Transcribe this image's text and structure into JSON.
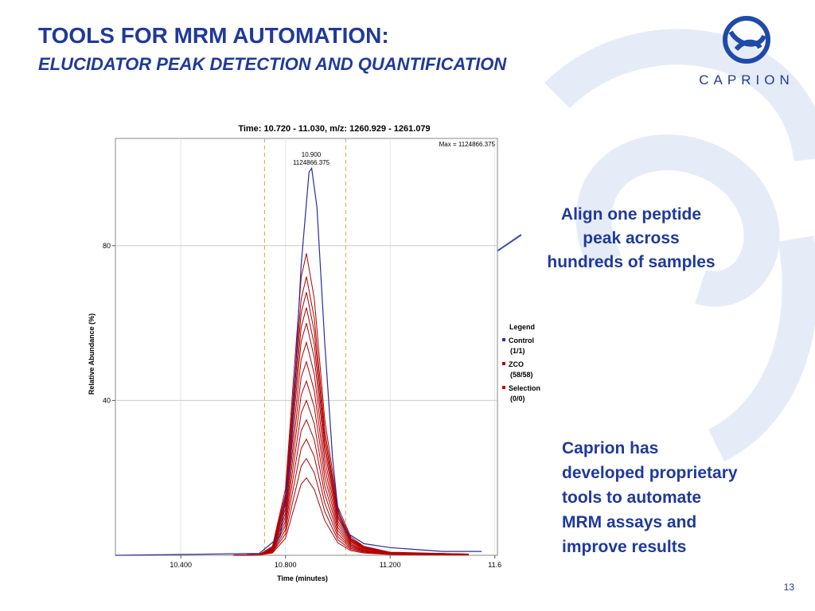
{
  "header": {
    "title": "TOOLS FOR MRM AUTOMATION:",
    "subtitle": "ELUCIDATOR PEAK DETECTION AND QUANTIFICATION",
    "logo": "CAPRION"
  },
  "callouts": [
    "Align one peptide",
    "peak across",
    "hundreds of samples"
  ],
  "body": [
    "Caprion has",
    "developed proprietary",
    "tools to automate",
    "MRM assays and",
    "improve results"
  ],
  "page_number": "13",
  "chart_data": {
    "type": "line",
    "title": "Time: 10.720 - 11.030, m/z: 1260.929 - 1261.079",
    "x_label": "Time (minutes)",
    "y_label": "Relative Abundance (%)",
    "max_label": "Max = 1124866.375",
    "peak_annotation": [
      "10.900",
      "1124866.375"
    ],
    "window": [
      10.72,
      11.03
    ],
    "xlim": [
      10.15,
      11.61
    ],
    "ylim": [
      0,
      107.7
    ],
    "xticks": [
      {
        "value": 10.4,
        "label": "10.400"
      },
      {
        "value": 10.8,
        "label": "10.800"
      },
      {
        "value": 11.2,
        "label": "11.200"
      },
      11.6
    ],
    "yticks": [
      40,
      80
    ],
    "grid": true,
    "legend_title": "Legend",
    "series": [
      {
        "name": "Control",
        "count": "(1/1)",
        "color": "#2b2ba0",
        "x": [
          10.15,
          10.7,
          10.78,
          10.82,
          10.86,
          10.89,
          10.9,
          10.92,
          10.95,
          10.98,
          11.0,
          11.03,
          11.1,
          11.2,
          11.4,
          11.55
        ],
        "values": [
          0,
          0.5,
          5,
          25,
          75,
          99,
          100,
          90,
          55,
          25,
          12,
          6,
          3,
          2,
          1,
          1
        ]
      },
      {
        "name": "ZCO",
        "count": "(58/58)",
        "color": "#b00000",
        "x": [
          10.6,
          10.7,
          10.75,
          10.8,
          10.83,
          10.86,
          10.88,
          10.91,
          10.95,
          11.0,
          11.05,
          11.1,
          11.2,
          11.5
        ],
        "curves": [
          [
            0,
            0.2,
            2.3,
            17.2,
            45.2,
            71.8,
            78,
            66.3,
            35.1,
            12.5,
            4.7,
            2.3,
            0.8,
            0.3
          ],
          [
            0,
            0.2,
            2.2,
            15.8,
            41.8,
            66.2,
            72,
            61.2,
            32.4,
            11.5,
            4.3,
            2.2,
            0.7,
            0.3
          ],
          [
            0,
            0.2,
            2,
            15,
            39.4,
            62.6,
            68,
            57.8,
            30.6,
            10.9,
            4.1,
            2,
            0.7,
            0.3
          ],
          [
            0,
            0.2,
            1.9,
            14.1,
            37.1,
            58.9,
            64,
            54.4,
            28.8,
            10.2,
            3.8,
            1.9,
            0.6,
            0.3
          ],
          [
            0,
            0.2,
            1.8,
            13.2,
            34.8,
            55.2,
            60,
            51,
            27,
            9.6,
            3.6,
            1.8,
            0.6,
            0.2
          ],
          [
            0,
            0.2,
            1.7,
            12.1,
            31.9,
            50.6,
            55,
            46.8,
            24.8,
            8.8,
            3.3,
            1.7,
            0.6,
            0.2
          ],
          [
            0,
            0.2,
            1.5,
            11,
            29,
            46,
            50,
            42.5,
            22.5,
            8,
            3,
            1.5,
            0.5,
            0.2
          ],
          [
            0,
            0.1,
            1.4,
            9.9,
            26.1,
            41.4,
            45,
            38.3,
            20.3,
            7.2,
            2.7,
            1.4,
            0.5,
            0.2
          ],
          [
            0,
            0.1,
            1.2,
            8.8,
            23.2,
            36.8,
            40,
            34,
            18,
            6.4,
            2.4,
            1.2,
            0.4,
            0.2
          ],
          [
            0,
            0.1,
            1.1,
            7.7,
            20.3,
            32.2,
            35,
            29.8,
            15.8,
            5.6,
            2.1,
            1.1,
            0.4,
            0.1
          ],
          [
            0,
            0.1,
            0.9,
            6.6,
            17.4,
            27.6,
            30,
            25.5,
            13.5,
            4.8,
            1.8,
            0.9,
            0.3,
            0.1
          ],
          [
            0,
            0.1,
            0.8,
            5.5,
            14.5,
            23,
            25,
            21.3,
            11.3,
            4,
            1.5,
            0.8,
            0.3,
            0.1
          ],
          [
            0,
            0.1,
            0.6,
            4.4,
            11.6,
            18.4,
            20,
            17,
            9,
            3.2,
            1.2,
            0.6,
            0.2,
            0.1
          ]
        ]
      },
      {
        "name": "Selection",
        "count": "(0/0)",
        "color": "#d00000",
        "x": [],
        "curves": []
      }
    ]
  }
}
